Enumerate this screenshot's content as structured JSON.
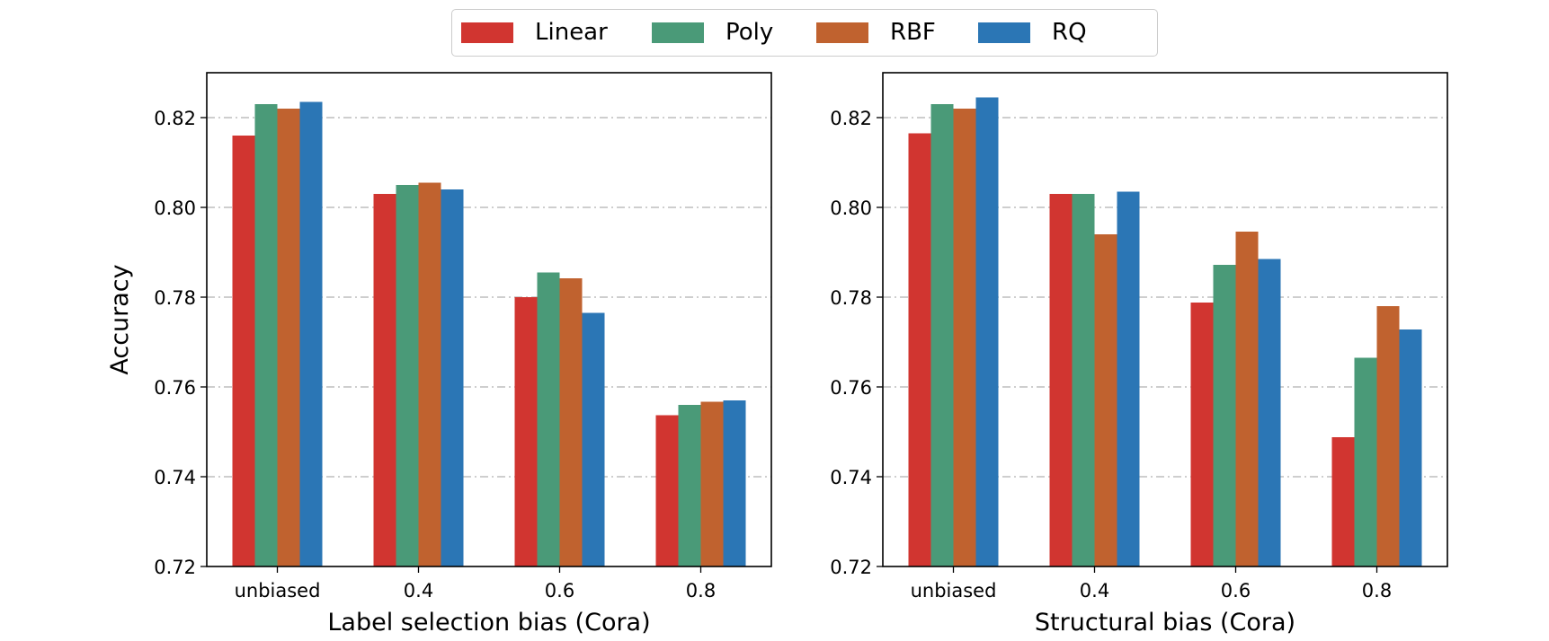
{
  "legend": {
    "placement": "top-center",
    "items": [
      {
        "label": "Linear",
        "color": "#d13530"
      },
      {
        "label": "Poly",
        "color": "#4a9a78"
      },
      {
        "label": "RBF",
        "color": "#c0622f"
      },
      {
        "label": "RQ",
        "color": "#2b76b5"
      }
    ]
  },
  "chart_data": [
    {
      "type": "bar",
      "xlabel": "Label selection bias (Cora)",
      "ylabel": "Accuracy",
      "categories": [
        "unbiased",
        "0.4",
        "0.6",
        "0.8"
      ],
      "ylim": [
        0.72,
        0.83
      ],
      "yticks": [
        "0.72",
        "0.74",
        "0.76",
        "0.78",
        "0.80",
        "0.82"
      ],
      "grid": "horizontal dash-dot",
      "series": [
        {
          "name": "Linear",
          "values": [
            0.816,
            0.803,
            0.78,
            0.7537
          ]
        },
        {
          "name": "Poly",
          "values": [
            0.823,
            0.805,
            0.7855,
            0.756
          ]
        },
        {
          "name": "RBF",
          "values": [
            0.822,
            0.8055,
            0.7842,
            0.7567
          ]
        },
        {
          "name": "RQ",
          "values": [
            0.8235,
            0.804,
            0.7765,
            0.757
          ]
        }
      ]
    },
    {
      "type": "bar",
      "xlabel": "Structural bias (Cora)",
      "ylabel": "",
      "categories": [
        "unbiased",
        "0.4",
        "0.6",
        "0.8"
      ],
      "ylim": [
        0.72,
        0.83
      ],
      "yticks": [
        "0.72",
        "0.74",
        "0.76",
        "0.78",
        "0.80",
        "0.82"
      ],
      "grid": "horizontal dash-dot",
      "series": [
        {
          "name": "Linear",
          "values": [
            0.8165,
            0.803,
            0.7788,
            0.7488
          ]
        },
        {
          "name": "Poly",
          "values": [
            0.823,
            0.803,
            0.7872,
            0.7665
          ]
        },
        {
          "name": "RBF",
          "values": [
            0.822,
            0.794,
            0.7946,
            0.778
          ]
        },
        {
          "name": "RQ",
          "values": [
            0.8245,
            0.8035,
            0.7885,
            0.7728
          ]
        }
      ]
    }
  ]
}
